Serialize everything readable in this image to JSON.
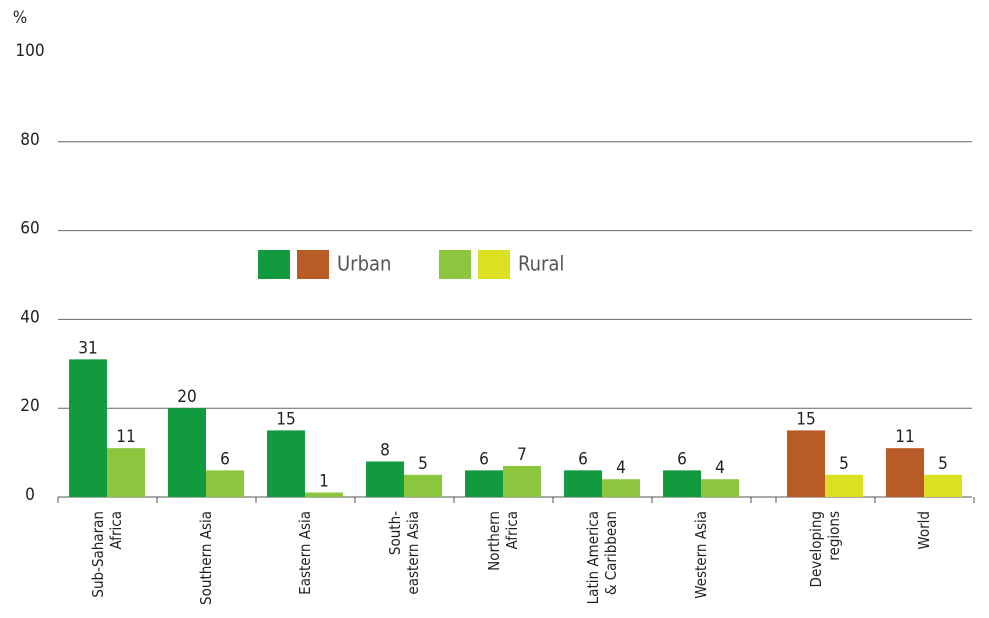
{
  "chart_data": {
    "type": "bar",
    "y_label": "%",
    "categories": [
      [
        "Sub-Saharan",
        "Africa"
      ],
      [
        "Southern Asia"
      ],
      [
        "Eastern Asia"
      ],
      [
        "South-",
        "eastern Asia"
      ],
      [
        "Northern",
        "Africa"
      ],
      [
        "Latin America",
        "& Caribbean"
      ],
      [
        "Western Asia"
      ],
      [
        "Developing",
        "regions"
      ],
      [
        "World"
      ]
    ],
    "series": [
      {
        "name": "Urban",
        "values": [
          31,
          20,
          15,
          8,
          6,
          6,
          6,
          15,
          11
        ],
        "colors": [
          "#119a3e",
          "#119a3e",
          "#119a3e",
          "#119a3e",
          "#119a3e",
          "#119a3e",
          "#119a3e",
          "#b85b27",
          "#b85b27"
        ]
      },
      {
        "name": "Rural",
        "values": [
          11,
          6,
          1,
          5,
          7,
          4,
          4,
          5,
          5
        ],
        "colors": [
          "#8cc63f",
          "#8cc63f",
          "#8cc63f",
          "#8cc63f",
          "#8cc63f",
          "#8cc63f",
          "#8cc63f",
          "#dbe021",
          "#dbe021"
        ]
      }
    ],
    "ylim": [
      0,
      100
    ],
    "yticks": [
      0,
      20,
      40,
      60,
      80,
      100
    ],
    "grid": true
  }
}
